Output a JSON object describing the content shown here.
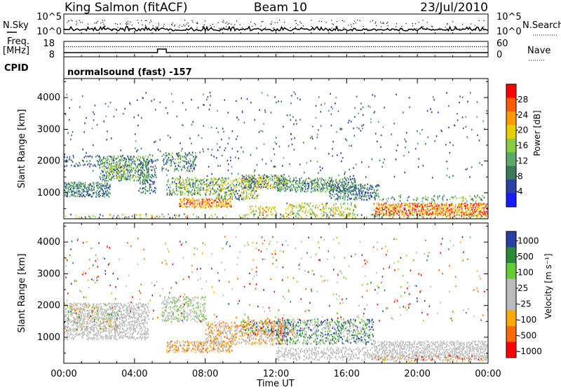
{
  "header": {
    "station": "King Salmon (fitACF)",
    "beam": "Beam 10",
    "date": "23/Jul/2010"
  },
  "summary": {
    "nsky_label": "N.Sky",
    "nsky_ticks": [
      "10^5",
      "10^0"
    ],
    "nsearch_label": "N.Search",
    "nsearch_ticks": [
      "10^5",
      "10^0"
    ],
    "freq_label_1": "Freq.",
    "freq_label_2": "[MHz]",
    "freq_ticks": [
      "18",
      "8"
    ],
    "nave_label": "Nave",
    "nave_ticks": [
      "60",
      "0"
    ],
    "cpid_label": "CPID",
    "cpid_value": "normalsound (fast) -157"
  },
  "colors": {
    "power": [
      "#1a1aff",
      "#2a3fa8",
      "#3a7a5a",
      "#5aaa6a",
      "#8acc40",
      "#e8d000",
      "#ff9a00",
      "#ff5a00",
      "#ff0000"
    ],
    "velocity": [
      "#ff0000",
      "#ff6a00",
      "#ffaa00",
      "#bbbbbb",
      "#bbbbbb",
      "#66cc33",
      "#2a8a3a",
      "#2a3fa8"
    ]
  },
  "chart_data": [
    {
      "type": "heatmap",
      "title": "Power",
      "ylabel": "Slant Range [km]",
      "xlabel": "Time UT",
      "ylim": [
        180,
        4600
      ],
      "x_ticks": [
        "00:00",
        "04:00",
        "08:00",
        "12:00",
        "16:00",
        "20:00",
        "00:00"
      ],
      "y_ticks": [
        "1000",
        "2000",
        "3000",
        "4000"
      ],
      "colorbar_label": "Power [dB]",
      "colorbar_ticks": [
        "4",
        "8",
        "12",
        "16",
        "20",
        "24",
        "28"
      ],
      "colorbar_range": [
        0,
        32
      ]
    },
    {
      "type": "heatmap",
      "title": "Velocity",
      "ylabel": "Slant Range [km]",
      "xlabel": "Time UT",
      "ylim": [
        180,
        4600
      ],
      "x_ticks": [
        "00:00",
        "04:00",
        "08:00",
        "12:00",
        "16:00",
        "20:00",
        "00:00"
      ],
      "y_ticks": [
        "1000",
        "2000",
        "3000",
        "4000"
      ],
      "colorbar_label": "Velocity [m s⁻¹]",
      "colorbar_ticks": [
        "1000",
        "500",
        "100",
        "25",
        "-25",
        "-100",
        "-500",
        "-1000"
      ]
    }
  ],
  "power_scatter_regions": [
    {
      "t0": 0.0,
      "t1": 2.6,
      "r0": 900,
      "r1": 1350,
      "p0": 4,
      "p1": 14,
      "density": 0.85
    },
    {
      "t0": 0.0,
      "t1": 2.0,
      "r0": 1850,
      "r1": 2200,
      "p0": 4,
      "p1": 10,
      "density": 0.35
    },
    {
      "t0": 2.0,
      "t1": 4.8,
      "r0": 1400,
      "r1": 2200,
      "p0": 4,
      "p1": 18,
      "density": 0.75
    },
    {
      "t0": 2.5,
      "t1": 3.5,
      "r0": 1500,
      "r1": 1900,
      "p0": 12,
      "p1": 22,
      "density": 0.5
    },
    {
      "t0": 4.2,
      "t1": 5.2,
      "r0": 1000,
      "r1": 2100,
      "p0": 4,
      "p1": 12,
      "density": 0.45
    },
    {
      "t0": 5.5,
      "t1": 7.5,
      "r0": 1700,
      "r1": 2300,
      "p0": 4,
      "p1": 16,
      "density": 0.55
    },
    {
      "t0": 5.8,
      "t1": 8.5,
      "r0": 950,
      "r1": 1500,
      "p0": 6,
      "p1": 20,
      "density": 0.65
    },
    {
      "t0": 6.5,
      "t1": 9.5,
      "r0": 550,
      "r1": 850,
      "p0": 18,
      "p1": 30,
      "density": 0.9
    },
    {
      "t0": 8.5,
      "t1": 11.0,
      "r0": 800,
      "r1": 1500,
      "p0": 6,
      "p1": 22,
      "density": 0.6
    },
    {
      "t0": 10.0,
      "t1": 12.5,
      "r0": 1150,
      "r1": 1600,
      "p0": 4,
      "p1": 26,
      "density": 0.75
    },
    {
      "t0": 10.5,
      "t1": 12.0,
      "r0": 300,
      "r1": 600,
      "p0": 14,
      "p1": 28,
      "density": 0.45
    },
    {
      "t0": 12.0,
      "t1": 16.5,
      "r0": 1050,
      "r1": 1500,
      "p0": 4,
      "p1": 16,
      "density": 0.75
    },
    {
      "t0": 12.5,
      "t1": 16.5,
      "r0": 300,
      "r1": 700,
      "p0": 10,
      "p1": 24,
      "density": 0.45
    },
    {
      "t0": 15.0,
      "t1": 17.8,
      "r0": 800,
      "r1": 1300,
      "p0": 4,
      "p1": 14,
      "density": 0.6
    },
    {
      "t0": 17.5,
      "t1": 24.0,
      "r0": 300,
      "r1": 700,
      "p0": 18,
      "p1": 32,
      "density": 0.9
    },
    {
      "t0": 17.5,
      "t1": 24.0,
      "r0": 750,
      "r1": 950,
      "p0": 6,
      "p1": 18,
      "density": 0.35
    },
    {
      "t0": 0.0,
      "t1": 24.0,
      "r0": 200,
      "r1": 350,
      "p0": 6,
      "p1": 26,
      "density": 0.25
    },
    {
      "t0": 0.0,
      "t1": 24.0,
      "r0": 1500,
      "r1": 4200,
      "p0": 4,
      "p1": 12,
      "density": 0.03
    }
  ],
  "velocity_scatter_regions": [
    {
      "t0": 0.0,
      "t1": 4.8,
      "r0": 950,
      "r1": 2100,
      "v0": 3,
      "v1": 4,
      "density": 0.7
    },
    {
      "t0": 0.0,
      "t1": 3.0,
      "r0": 1200,
      "r1": 2100,
      "v0": 1,
      "v1": 6,
      "density": 0.2
    },
    {
      "t0": 5.5,
      "t1": 8.0,
      "r0": 1500,
      "r1": 2300,
      "v0": 3,
      "v1": 5,
      "density": 0.55
    },
    {
      "t0": 5.8,
      "t1": 9.5,
      "r0": 550,
      "r1": 900,
      "v0": 1,
      "v1": 3,
      "density": 0.75
    },
    {
      "t0": 8.0,
      "t1": 12.5,
      "r0": 800,
      "r1": 1500,
      "v0": 1,
      "v1": 4,
      "density": 0.6
    },
    {
      "t0": 10.0,
      "t1": 13.0,
      "r0": 1100,
      "r1": 1600,
      "v0": 0,
      "v1": 7,
      "density": 0.5
    },
    {
      "t0": 12.0,
      "t1": 17.5,
      "r0": 800,
      "r1": 1600,
      "v0": 3,
      "v1": 7,
      "density": 0.6
    },
    {
      "t0": 12.0,
      "t1": 17.5,
      "r0": 300,
      "r1": 700,
      "v0": 3,
      "v1": 4,
      "density": 0.55
    },
    {
      "t0": 17.5,
      "t1": 24.0,
      "r0": 300,
      "r1": 900,
      "v0": 3,
      "v1": 4,
      "density": 0.85
    },
    {
      "t0": 17.5,
      "t1": 24.0,
      "r0": 250,
      "r1": 450,
      "v0": 0,
      "v1": 3,
      "density": 0.3
    },
    {
      "t0": 0.0,
      "t1": 24.0,
      "r0": 1500,
      "r1": 4200,
      "v0": 0,
      "v1": 7,
      "density": 0.03
    }
  ]
}
